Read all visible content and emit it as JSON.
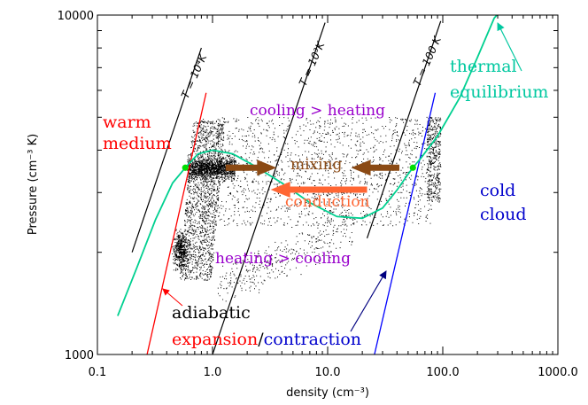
{
  "chart_data": {
    "type": "scatter",
    "x_scale": "log",
    "y_scale": "log",
    "xlim": [
      0.1,
      1000.0
    ],
    "ylim": [
      1000,
      10000
    ],
    "xlabel": "density (cm⁻³)",
    "ylabel": "Pressure (cm⁻³ K)",
    "x_ticks": [
      {
        "value": 0.1,
        "label": "0.1"
      },
      {
        "value": 1.0,
        "label": "1.0"
      },
      {
        "value": 10.0,
        "label": "10.0"
      },
      {
        "value": 100.0,
        "label": "100.0"
      },
      {
        "value": 1000.0,
        "label": "1000.0"
      }
    ],
    "y_ticks": [
      {
        "value": 1000,
        "label": "1000"
      },
      {
        "value": 10000,
        "label": "10000"
      }
    ],
    "isotherms": [
      {
        "label": "T = 10⁴K",
        "T": 10000,
        "n_range": [
          0.2,
          0.8
        ]
      },
      {
        "label": "T = 10³K",
        "T": 1000,
        "n_range": [
          0.9,
          9.5
        ]
      },
      {
        "label": "T = 100 K",
        "T": 100,
        "n_range": [
          22,
          96
        ]
      }
    ],
    "adiabats": [
      {
        "name": "warm adiabat",
        "color": "#ff0000",
        "n": [
          0.27,
          0.88
        ],
        "p": [
          1000,
          5900
        ]
      },
      {
        "name": "cold adiabat",
        "color": "#0000ff",
        "n": [
          25.5,
          86
        ],
        "p": [
          1000,
          5900
        ]
      }
    ],
    "equilibrium_curve": {
      "name": "thermal equilibrium",
      "color": "#00d090",
      "points": [
        [
          0.15,
          1300
        ],
        [
          0.22,
          1800
        ],
        [
          0.32,
          2500
        ],
        [
          0.45,
          3200
        ],
        [
          0.58,
          3550
        ],
        [
          0.75,
          3900
        ],
        [
          1.0,
          4000
        ],
        [
          1.5,
          3900
        ],
        [
          2.3,
          3600
        ],
        [
          4.0,
          3200
        ],
        [
          7.0,
          2800
        ],
        [
          12.0,
          2550
        ],
        [
          20.0,
          2520
        ],
        [
          30.0,
          2700
        ],
        [
          40.0,
          3050
        ],
        [
          50.0,
          3400
        ],
        [
          55.0,
          3550
        ],
        [
          65.0,
          3800
        ],
        [
          90.0,
          4400
        ],
        [
          140.0,
          5700
        ],
        [
          200.0,
          7500
        ],
        [
          280.0,
          9800
        ],
        [
          295.0,
          10000
        ]
      ]
    },
    "equilibrium_points": [
      {
        "n": 0.58,
        "p": 3550,
        "color": "#00dd00"
      },
      {
        "n": 55.0,
        "p": 3550,
        "color": "#00dd00"
      }
    ],
    "arrows": [
      {
        "name": "mixing-left",
        "color": "#8b4a14",
        "from": [
          1.3,
          3550
        ],
        "to": [
          3.6,
          3550
        ]
      },
      {
        "name": "mixing-right",
        "color": "#8b4a14",
        "from": [
          42.0,
          3550
        ],
        "to": [
          16.0,
          3550
        ]
      },
      {
        "name": "conduction",
        "color": "#ff6633",
        "from": [
          22.0,
          3060
        ],
        "to": [
          3.2,
          3060
        ]
      }
    ],
    "annotations": {
      "warm_medium_1": "warm",
      "warm_medium_2": "medium",
      "cooling_heating": "cooling > heating",
      "mixing": "mixing",
      "conduction": "conduction",
      "heating_cooling": "heating > cooling",
      "cold_cloud_1": "cold",
      "cold_cloud_2": "cloud",
      "thermal_1": "thermal",
      "thermal_2": "equilibrium",
      "adiabatic": "adiabatic",
      "expansion": "expansion",
      "slash": "/",
      "contraction": "contraction"
    },
    "colors": {
      "warm": "#ff0000",
      "cold": "#0000cc",
      "purple": "#9900cc",
      "brown": "#8b4a14",
      "orange": "#ff6633",
      "teal": "#00c8a0",
      "navy": "#000080"
    }
  }
}
